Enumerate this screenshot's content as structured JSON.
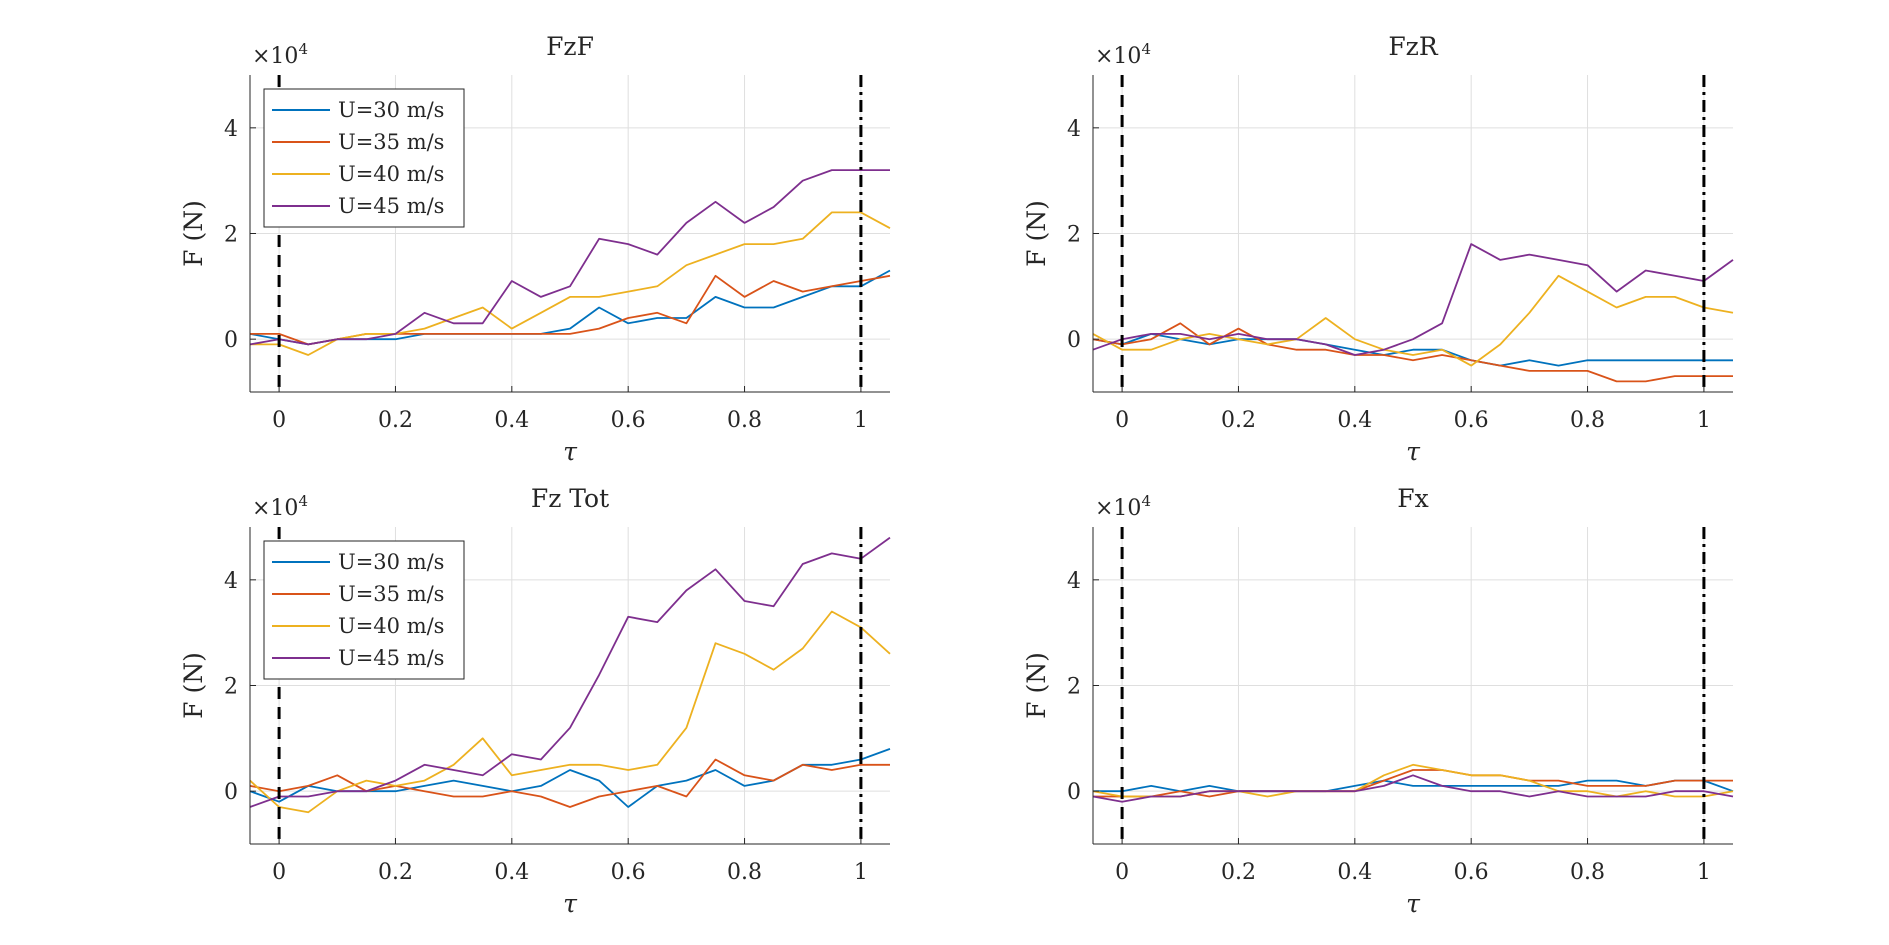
{
  "chart_data": [
    {
      "type": "line",
      "title": "FzF",
      "xlabel": "τ",
      "ylabel": "F (N)",
      "exponent_label": "×10",
      "exponent_power": "4",
      "xlim": [
        -0.05,
        1.05
      ],
      "ylim": [
        -1,
        5
      ],
      "xticks": [
        "0",
        "0.2",
        "0.4",
        "0.6",
        "0.8",
        "1"
      ],
      "yticks": [
        "0",
        "2",
        "4"
      ],
      "vlines": [
        0,
        1
      ],
      "legend": true,
      "x": [
        -0.05,
        0.0,
        0.05,
        0.1,
        0.15,
        0.2,
        0.25,
        0.3,
        0.35,
        0.4,
        0.45,
        0.5,
        0.55,
        0.6,
        0.65,
        0.7,
        0.75,
        0.8,
        0.85,
        0.9,
        0.95,
        1.0,
        1.05
      ],
      "series": [
        {
          "name": "U=30 m/s",
          "color": "#0072BD",
          "values": [
            0.1,
            0.0,
            -0.1,
            0.0,
            0.0,
            0.0,
            0.1,
            0.1,
            0.1,
            0.1,
            0.1,
            0.2,
            0.6,
            0.3,
            0.4,
            0.4,
            0.8,
            0.6,
            0.6,
            0.8,
            1.0,
            1.0,
            1.3
          ]
        },
        {
          "name": "U=35 m/s",
          "color": "#D95319",
          "values": [
            0.1,
            0.1,
            -0.1,
            0.0,
            0.1,
            0.1,
            0.1,
            0.1,
            0.1,
            0.1,
            0.1,
            0.1,
            0.2,
            0.4,
            0.5,
            0.3,
            1.2,
            0.8,
            1.1,
            0.9,
            1.0,
            1.1,
            1.2
          ]
        },
        {
          "name": "U=40 m/s",
          "color": "#EDB120",
          "values": [
            -0.1,
            -0.1,
            -0.3,
            0.0,
            0.1,
            0.1,
            0.2,
            0.4,
            0.6,
            0.2,
            0.5,
            0.8,
            0.8,
            0.9,
            1.0,
            1.4,
            1.6,
            1.8,
            1.8,
            1.9,
            2.4,
            2.4,
            2.1
          ]
        },
        {
          "name": "U=45 m/s",
          "color": "#7E2F8E",
          "values": [
            -0.1,
            0.0,
            -0.1,
            0.0,
            0.0,
            0.1,
            0.5,
            0.3,
            0.3,
            1.1,
            0.8,
            1.0,
            1.9,
            1.8,
            1.6,
            2.2,
            2.6,
            2.2,
            2.5,
            3.0,
            3.2,
            3.2,
            3.2
          ]
        }
      ]
    },
    {
      "type": "line",
      "title": "FzR",
      "xlabel": "τ",
      "ylabel": "F (N)",
      "exponent_label": "×10",
      "exponent_power": "4",
      "xlim": [
        -0.05,
        1.05
      ],
      "ylim": [
        -1,
        5
      ],
      "xticks": [
        "0",
        "0.2",
        "0.4",
        "0.6",
        "0.8",
        "1"
      ],
      "yticks": [
        "0",
        "2",
        "4"
      ],
      "vlines": [
        0,
        1
      ],
      "legend": false,
      "x": [
        -0.05,
        0.0,
        0.05,
        0.1,
        0.15,
        0.2,
        0.25,
        0.3,
        0.35,
        0.4,
        0.45,
        0.5,
        0.55,
        0.6,
        0.65,
        0.7,
        0.75,
        0.8,
        0.85,
        0.9,
        0.95,
        1.0,
        1.05
      ],
      "series": [
        {
          "name": "U=30 m/s",
          "color": "#0072BD",
          "values": [
            0.0,
            -0.1,
            0.1,
            0.0,
            -0.1,
            0.0,
            0.0,
            0.0,
            -0.1,
            -0.2,
            -0.3,
            -0.2,
            -0.2,
            -0.4,
            -0.5,
            -0.4,
            -0.5,
            -0.4,
            -0.4,
            -0.4,
            -0.4,
            -0.4,
            -0.4
          ]
        },
        {
          "name": "U=35 m/s",
          "color": "#D95319",
          "values": [
            0.0,
            -0.1,
            0.0,
            0.3,
            -0.1,
            0.2,
            -0.1,
            -0.2,
            -0.2,
            -0.3,
            -0.3,
            -0.4,
            -0.3,
            -0.4,
            -0.5,
            -0.6,
            -0.6,
            -0.6,
            -0.8,
            -0.8,
            -0.7,
            -0.7,
            -0.7
          ]
        },
        {
          "name": "U=40 m/s",
          "color": "#EDB120",
          "values": [
            0.1,
            -0.2,
            -0.2,
            0.0,
            0.1,
            0.0,
            -0.1,
            0.0,
            0.4,
            0.0,
            -0.2,
            -0.3,
            -0.2,
            -0.5,
            -0.1,
            0.5,
            1.2,
            0.9,
            0.6,
            0.8,
            0.8,
            0.6,
            0.5
          ]
        },
        {
          "name": "U=45 m/s",
          "color": "#7E2F8E",
          "values": [
            -0.2,
            0.0,
            0.1,
            0.1,
            0.0,
            0.1,
            0.0,
            0.0,
            -0.1,
            -0.3,
            -0.2,
            0.0,
            0.3,
            1.8,
            1.5,
            1.6,
            1.5,
            1.4,
            0.9,
            1.3,
            1.2,
            1.1,
            1.5
          ]
        }
      ]
    },
    {
      "type": "line",
      "title": "Fz Tot",
      "xlabel": "τ",
      "ylabel": "F (N)",
      "exponent_label": "×10",
      "exponent_power": "4",
      "xlim": [
        -0.05,
        1.05
      ],
      "ylim": [
        -1,
        5
      ],
      "xticks": [
        "0",
        "0.2",
        "0.4",
        "0.6",
        "0.8",
        "1"
      ],
      "yticks": [
        "0",
        "2",
        "4"
      ],
      "vlines": [
        0,
        1
      ],
      "legend": true,
      "x": [
        -0.05,
        0.0,
        0.05,
        0.1,
        0.15,
        0.2,
        0.25,
        0.3,
        0.35,
        0.4,
        0.45,
        0.5,
        0.55,
        0.6,
        0.65,
        0.7,
        0.75,
        0.8,
        0.85,
        0.9,
        0.95,
        1.0,
        1.05
      ],
      "series": [
        {
          "name": "U=30 m/s",
          "color": "#0072BD",
          "values": [
            0.0,
            -0.2,
            0.1,
            0.0,
            0.0,
            0.0,
            0.1,
            0.2,
            0.1,
            0.0,
            0.1,
            0.4,
            0.2,
            -0.3,
            0.1,
            0.2,
            0.4,
            0.1,
            0.2,
            0.5,
            0.5,
            0.6,
            0.8
          ]
        },
        {
          "name": "U=35 m/s",
          "color": "#D95319",
          "values": [
            0.1,
            0.0,
            0.1,
            0.3,
            0.0,
            0.1,
            0.0,
            -0.1,
            -0.1,
            0.0,
            -0.1,
            -0.3,
            -0.1,
            0.0,
            0.1,
            -0.1,
            0.6,
            0.3,
            0.2,
            0.5,
            0.4,
            0.5,
            0.5
          ]
        },
        {
          "name": "U=40 m/s",
          "color": "#EDB120",
          "values": [
            0.2,
            -0.3,
            -0.4,
            0.0,
            0.2,
            0.1,
            0.2,
            0.5,
            1.0,
            0.3,
            0.4,
            0.5,
            0.5,
            0.4,
            0.5,
            1.2,
            2.8,
            2.6,
            2.3,
            2.7,
            3.4,
            3.1,
            2.6
          ]
        },
        {
          "name": "U=45 m/s",
          "color": "#7E2F8E",
          "values": [
            -0.3,
            -0.1,
            -0.1,
            0.0,
            0.0,
            0.2,
            0.5,
            0.4,
            0.3,
            0.7,
            0.6,
            1.2,
            2.2,
            3.3,
            3.2,
            3.8,
            4.2,
            3.6,
            3.5,
            4.3,
            4.5,
            4.4,
            4.8
          ]
        }
      ]
    },
    {
      "type": "line",
      "title": "Fx",
      "xlabel": "τ",
      "ylabel": "F (N)",
      "exponent_label": "×10",
      "exponent_power": "4",
      "xlim": [
        -0.05,
        1.05
      ],
      "ylim": [
        -1,
        5
      ],
      "xticks": [
        "0",
        "0.2",
        "0.4",
        "0.6",
        "0.8",
        "1"
      ],
      "yticks": [
        "0",
        "2",
        "4"
      ],
      "vlines": [
        0,
        1
      ],
      "legend": false,
      "x": [
        -0.05,
        0.0,
        0.05,
        0.1,
        0.15,
        0.2,
        0.25,
        0.3,
        0.35,
        0.4,
        0.45,
        0.5,
        0.55,
        0.6,
        0.65,
        0.7,
        0.75,
        0.8,
        0.85,
        0.9,
        0.95,
        1.0,
        1.05
      ],
      "series": [
        {
          "name": "U=30 m/s",
          "color": "#0072BD",
          "values": [
            0.0,
            0.0,
            0.1,
            0.0,
            0.1,
            0.0,
            0.0,
            0.0,
            0.0,
            0.1,
            0.2,
            0.1,
            0.1,
            0.1,
            0.1,
            0.1,
            0.1,
            0.2,
            0.2,
            0.1,
            0.2,
            0.2,
            0.0
          ]
        },
        {
          "name": "U=35 m/s",
          "color": "#D95319",
          "values": [
            -0.1,
            -0.1,
            -0.1,
            0.0,
            -0.1,
            0.0,
            0.0,
            0.0,
            0.0,
            0.0,
            0.2,
            0.4,
            0.4,
            0.3,
            0.3,
            0.2,
            0.2,
            0.1,
            0.1,
            0.1,
            0.2,
            0.2,
            0.2
          ]
        },
        {
          "name": "U=40 m/s",
          "color": "#EDB120",
          "values": [
            0.0,
            -0.1,
            -0.1,
            -0.1,
            0.0,
            0.0,
            -0.1,
            0.0,
            0.0,
            0.0,
            0.3,
            0.5,
            0.4,
            0.3,
            0.3,
            0.2,
            0.0,
            0.0,
            -0.1,
            0.0,
            -0.1,
            -0.1,
            0.0
          ]
        },
        {
          "name": "U=45 m/s",
          "color": "#7E2F8E",
          "values": [
            -0.1,
            -0.2,
            -0.1,
            -0.1,
            0.0,
            0.0,
            0.0,
            0.0,
            0.0,
            0.0,
            0.1,
            0.3,
            0.1,
            0.0,
            0.0,
            -0.1,
            0.0,
            -0.1,
            -0.1,
            -0.1,
            0.0,
            0.0,
            -0.1
          ]
        }
      ]
    }
  ]
}
